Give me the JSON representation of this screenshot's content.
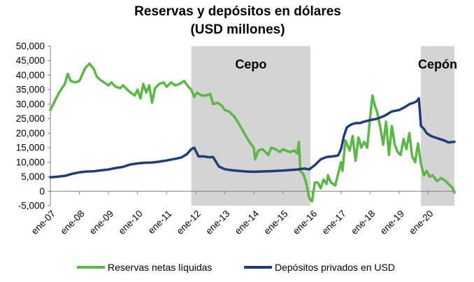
{
  "chart_data": {
    "type": "line",
    "title": "Reservas y depósitos en dólares",
    "subtitle": "(USD millones)",
    "ylim": [
      -5000,
      50000
    ],
    "yticks": [
      "-5,000",
      "0",
      "5,000",
      "10,000",
      "15,000",
      "20,000",
      "25,000",
      "30,000",
      "35,000",
      "40,000",
      "45,000",
      "50,000"
    ],
    "ytick_values": [
      -5000,
      0,
      5000,
      10000,
      15000,
      20000,
      25000,
      30000,
      35000,
      40000,
      45000,
      50000
    ],
    "xlim": [
      2007.0,
      2020.95
    ],
    "xticks": [
      "ene-07",
      "ene-08",
      "ene-09",
      "ene-10",
      "ene-11",
      "ene-12",
      "ene-13",
      "ene-14",
      "ene-15",
      "ene-16",
      "ene-17",
      "ene-18",
      "ene-19",
      "ene-20"
    ],
    "xtick_values": [
      2007,
      2008,
      2009,
      2010,
      2011,
      2012,
      2013,
      2014,
      2015,
      2016,
      2017,
      2018,
      2019,
      2020
    ],
    "grid": false,
    "legend_position": "bottom",
    "bands": [
      {
        "label": "Cepo",
        "x_start": 2011.85,
        "x_end": 2015.95
      },
      {
        "label": "Cepón",
        "x_start": 2019.75,
        "x_end": 2020.9
      }
    ],
    "series": [
      {
        "name": "Reservas netas líquidas",
        "color": "#5ab945",
        "x": [
          2007.0,
          2007.15,
          2007.3,
          2007.5,
          2007.6,
          2007.7,
          2007.85,
          2008.0,
          2008.2,
          2008.35,
          2008.5,
          2008.6,
          2008.7,
          2008.85,
          2009.0,
          2009.1,
          2009.25,
          2009.4,
          2009.5,
          2009.7,
          2009.9,
          2010.0,
          2010.1,
          2010.2,
          2010.3,
          2010.4,
          2010.5,
          2010.6,
          2010.75,
          2010.9,
          2011.0,
          2011.15,
          2011.3,
          2011.45,
          2011.6,
          2011.75,
          2011.85,
          2011.95,
          2012.05,
          2012.2,
          2012.35,
          2012.5,
          2012.6,
          2012.75,
          2012.9,
          2013.0,
          2013.15,
          2013.35,
          2013.5,
          2013.7,
          2013.85,
          2014.0,
          2014.05,
          2014.15,
          2014.3,
          2014.5,
          2014.6,
          2014.75,
          2014.9,
          2015.0,
          2015.1,
          2015.25,
          2015.4,
          2015.5,
          2015.55,
          2015.6,
          2015.7,
          2015.8,
          2015.9,
          2015.95,
          2016.0,
          2016.1,
          2016.2,
          2016.3,
          2016.4,
          2016.5,
          2016.55,
          2016.65,
          2016.8,
          2016.9,
          2017.0,
          2017.05,
          2017.15,
          2017.3,
          2017.4,
          2017.5,
          2017.6,
          2017.7,
          2017.8,
          2017.9,
          2018.0,
          2018.08,
          2018.15,
          2018.25,
          2018.35,
          2018.45,
          2018.55,
          2018.65,
          2018.75,
          2018.85,
          2018.95,
          2019.05,
          2019.15,
          2019.25,
          2019.35,
          2019.45,
          2019.55,
          2019.65,
          2019.75,
          2019.85,
          2019.95,
          2020.05,
          2020.15,
          2020.3,
          2020.45,
          2020.6,
          2020.75,
          2020.85,
          2020.9
        ],
        "values": [
          28000,
          31000,
          34000,
          37000,
          40500,
          38000,
          37500,
          38000,
          42500,
          44000,
          42000,
          39500,
          38500,
          37500,
          36500,
          37500,
          36000,
          35500,
          36500,
          34500,
          33000,
          35000,
          32000,
          37000,
          34000,
          36500,
          30500,
          35500,
          37000,
          37500,
          36000,
          37500,
          36500,
          37000,
          38000,
          36000,
          35000,
          32500,
          34000,
          33000,
          33000,
          33500,
          30000,
          30500,
          29500,
          28000,
          27500,
          25500,
          23000,
          19500,
          17000,
          15000,
          11000,
          14000,
          14500,
          12500,
          15000,
          14500,
          13500,
          14500,
          14000,
          13500,
          14000,
          13000,
          17000,
          7000,
          6000,
          3000,
          -2000,
          -3000,
          -3500,
          3000,
          3000,
          1000,
          4000,
          2500,
          5500,
          3000,
          2000,
          6000,
          10000,
          7000,
          17500,
          14000,
          19000,
          10500,
          18500,
          15000,
          17000,
          15000,
          25000,
          33000,
          30000,
          27000,
          22000,
          16000,
          24000,
          12500,
          22500,
          16000,
          13500,
          12500,
          18000,
          14500,
          20000,
          12000,
          10000,
          16500,
          9500,
          5500,
          7000,
          5000,
          5500,
          3500,
          4500,
          3500,
          2000,
          1000,
          -500
        ]
      },
      {
        "name": "Depósitos privados en USD",
        "color": "#1f3d7a",
        "x": [
          2007.0,
          2007.25,
          2007.5,
          2007.75,
          2008.0,
          2008.25,
          2008.5,
          2008.75,
          2009.0,
          2009.25,
          2009.5,
          2009.75,
          2010.0,
          2010.25,
          2010.5,
          2010.75,
          2011.0,
          2011.25,
          2011.5,
          2011.7,
          2011.85,
          2011.95,
          2012.1,
          2012.3,
          2012.45,
          2012.6,
          2012.8,
          2013.0,
          2013.25,
          2013.5,
          2013.75,
          2014.0,
          2014.25,
          2014.5,
          2014.75,
          2015.0,
          2015.25,
          2015.5,
          2015.75,
          2015.9,
          2016.1,
          2016.3,
          2016.5,
          2016.7,
          2016.9,
          2017.0,
          2017.1,
          2017.2,
          2017.35,
          2017.5,
          2017.65,
          2017.8,
          2018.0,
          2018.25,
          2018.5,
          2018.75,
          2019.0,
          2019.2,
          2019.35,
          2019.5,
          2019.6,
          2019.68,
          2019.75,
          2019.85,
          2019.95,
          2020.1,
          2020.25,
          2020.4,
          2020.55,
          2020.7,
          2020.85,
          2020.9
        ],
        "values": [
          4800,
          5000,
          5300,
          6000,
          6500,
          6800,
          6900,
          7200,
          7500,
          8000,
          8400,
          9200,
          9600,
          9800,
          9900,
          10200,
          10600,
          11100,
          11600,
          12800,
          14500,
          15000,
          12000,
          12000,
          11700,
          11800,
          8500,
          7600,
          7200,
          7000,
          6800,
          6700,
          6800,
          6900,
          7000,
          7100,
          7300,
          7500,
          7800,
          7500,
          9000,
          11000,
          11800,
          12000,
          12300,
          14500,
          19000,
          22000,
          23000,
          23500,
          23500,
          24000,
          24500,
          25000,
          26000,
          27500,
          28000,
          29000,
          30000,
          30500,
          31000,
          32000,
          22500,
          21500,
          20000,
          19000,
          18500,
          18000,
          17500,
          16800,
          17000,
          17000
        ]
      }
    ]
  }
}
